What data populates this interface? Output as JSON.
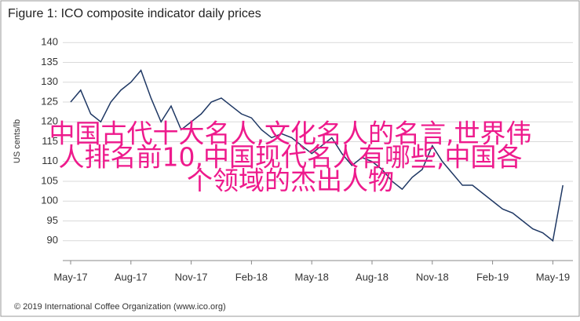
{
  "chart_data": {
    "type": "line",
    "title": "Figure 1: ICO composite indicator daily prices",
    "y_label": "US cents/lb",
    "source": "© 2019 International Coffee Organization (www.ico.org)",
    "annotations": [
      "中国古代十大名人,文化名人的名言,世界伟",
      "人排名前10,中国现代名人有哪些,中国各",
      "个领域的杰出人物"
    ],
    "categories": [
      "May-17",
      null,
      null,
      null,
      null,
      null,
      "Aug-17",
      null,
      null,
      null,
      null,
      null,
      "Nov-17",
      null,
      null,
      null,
      null,
      null,
      "Feb-18",
      null,
      null,
      null,
      null,
      null,
      "May-18",
      null,
      null,
      null,
      null,
      null,
      "Aug-18",
      null,
      null,
      null,
      null,
      null,
      "Nov-18",
      null,
      null,
      null,
      null,
      null,
      "Feb-19",
      null,
      null,
      null,
      null,
      null,
      "May-19",
      null
    ],
    "series": [
      {
        "name": "ICO composite indicator",
        "color": "#1f3864",
        "values": [
          125,
          128,
          122,
          120,
          125,
          128,
          130,
          133,
          126,
          120,
          124,
          118,
          120,
          122,
          125,
          126,
          124,
          122,
          121,
          118,
          116,
          117,
          116,
          114,
          112,
          114,
          116,
          112,
          109,
          111,
          110,
          108,
          105,
          103,
          106,
          108,
          114,
          110,
          107,
          104,
          104,
          102,
          100,
          98,
          97,
          95,
          93,
          92,
          90,
          104
        ]
      }
    ],
    "ylim": [
      85,
      145
    ],
    "yticks": [
      90,
      95,
      100,
      105,
      110,
      115,
      120,
      125,
      130,
      135,
      140
    ],
    "grid": true
  }
}
